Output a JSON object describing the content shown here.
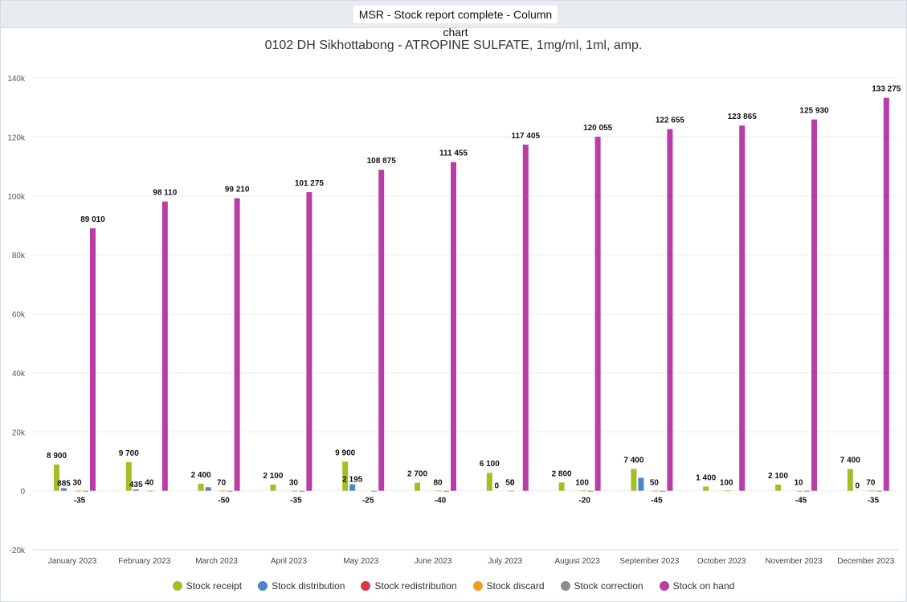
{
  "header": {
    "title": "MSR - Stock report complete - Column chart"
  },
  "chart_data": {
    "type": "bar",
    "title": "0102 DH Sikhottabong - ATROPINE SULFATE, 1mg/ml, 1ml, amp.",
    "xlabel": "",
    "ylabel": "",
    "ylim": [
      -20000,
      140000
    ],
    "yticks": [
      -20000,
      0,
      20000,
      40000,
      60000,
      80000,
      100000,
      120000,
      140000
    ],
    "ytick_labels": [
      "-20k",
      "0",
      "20k",
      "40k",
      "60k",
      "80k",
      "100k",
      "120k",
      "140k"
    ],
    "grid": true,
    "legend_position": "bottom",
    "categories": [
      "January 2023",
      "February 2023",
      "March 2023",
      "April 2023",
      "May 2023",
      "June 2023",
      "July 2023",
      "August 2023",
      "September 2023",
      "October 2023",
      "November 2023",
      "December 2023"
    ],
    "series": [
      {
        "name": "Stock receipt",
        "color": "#a3bf26",
        "values": [
          8900,
          9700,
          2400,
          2100,
          9900,
          2700,
          6100,
          2800,
          7400,
          1400,
          2100,
          7400
        ],
        "labels": [
          "8 900",
          "9 700",
          "2 400",
          "2 100",
          "9 900",
          "2 700",
          "6 100",
          "2 800",
          "7 400",
          "1 400",
          "2 100",
          "7 400"
        ]
      },
      {
        "name": "Stock distribution",
        "color": "#4a88c7",
        "values": [
          885,
          435,
          1200,
          0,
          2195,
          0,
          0,
          0,
          4400,
          0,
          0,
          0
        ],
        "labels": [
          "885",
          "435",
          "",
          "",
          "2 195",
          "",
          "0",
          "",
          "",
          "",
          "",
          "0"
        ]
      },
      {
        "name": "Stock redistribution",
        "color": "#d9364a",
        "values": [
          0,
          0,
          0,
          0,
          0,
          0,
          0,
          0,
          0,
          0,
          0,
          0
        ],
        "labels": [
          "",
          "",
          "",
          "",
          "",
          "",
          "",
          "",
          "",
          "",
          "",
          ""
        ]
      },
      {
        "name": "Stock discard",
        "color": "#f39c1f",
        "values": [
          30,
          40,
          70,
          30,
          0,
          80,
          50,
          100,
          50,
          100,
          10,
          70
        ],
        "labels": [
          "30",
          "40",
          "70",
          "30",
          "",
          "80",
          "50",
          "100",
          "50",
          "100",
          "10",
          "70"
        ]
      },
      {
        "name": "Stock correction",
        "color": "#8c8c8c",
        "values": [
          -35,
          0,
          -50,
          -35,
          -25,
          -40,
          0,
          -20,
          -45,
          0,
          -45,
          -35
        ],
        "labels": [
          "-35",
          "",
          "-50",
          "-35",
          "-25",
          "-40",
          "0",
          "-20",
          "-45",
          "",
          "-45",
          "-35"
        ]
      },
      {
        "name": "Stock on hand",
        "color": "#b83da6",
        "values": [
          89010,
          98110,
          99210,
          101275,
          108875,
          111455,
          117405,
          120055,
          122655,
          123865,
          125930,
          133275
        ],
        "labels": [
          "89 010",
          "98 110",
          "99 210",
          "101 275",
          "108 875",
          "111 455",
          "117 405",
          "120 055",
          "122 655",
          "123 865",
          "125 930",
          "133 275"
        ]
      }
    ]
  }
}
